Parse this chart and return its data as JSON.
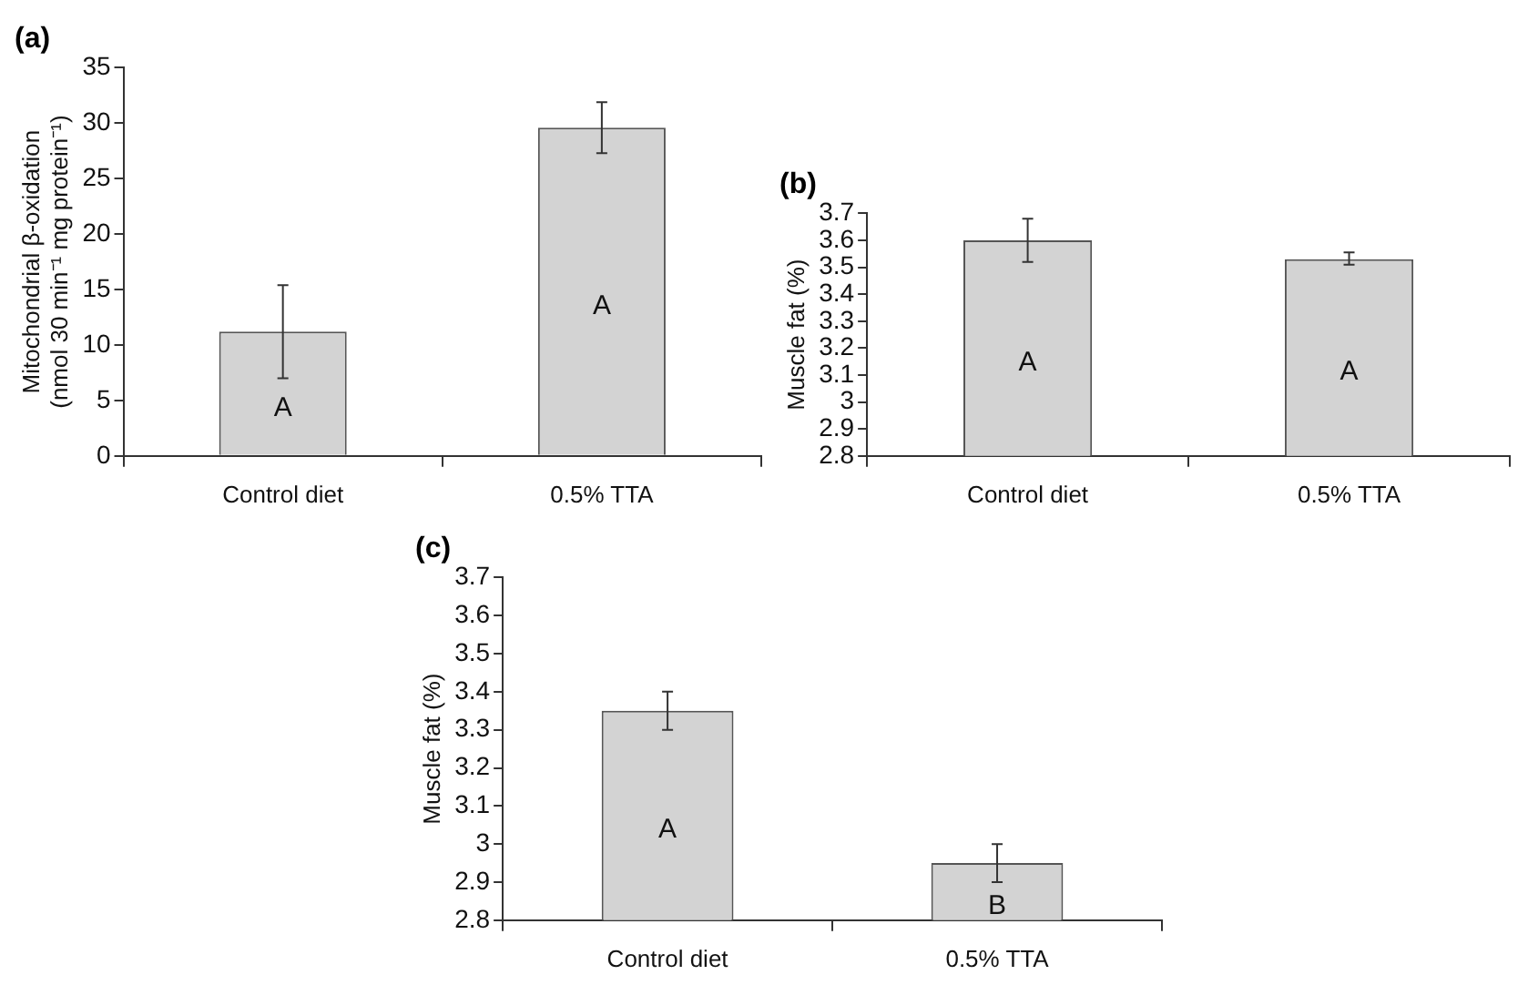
{
  "chart_data": [
    {
      "type": "bar",
      "title": "(a)",
      "ylabel": "Mitochondrial β-oxidation (nmol 30 min⁻¹ mg protein⁻¹)",
      "categories": [
        "Control diet",
        "0.5% TTA"
      ],
      "values": [
        11.2,
        29.6
      ],
      "errors": [
        [
          7,
          15.4
        ],
        [
          27.3,
          31.9
        ]
      ],
      "color": "#d3d3d3",
      "ylim": [
        0,
        35
      ],
      "yticks": [
        0,
        5,
        10,
        15,
        20,
        25,
        30,
        35
      ],
      "grid": false,
      "legend": false,
      "annotations": [
        "A",
        "A"
      ]
    },
    {
      "type": "bar",
      "title": "(b)",
      "ylabel": "Muscle fat (%)",
      "categories": [
        "Control diet",
        "0.5% TTA"
      ],
      "values": [
        3.6,
        3.53
      ],
      "errors": [
        [
          3.52,
          3.68
        ],
        [
          3.51,
          3.555
        ]
      ],
      "color": "#d3d3d3",
      "ylim": [
        2.8,
        3.7
      ],
      "yticks": [
        2.8,
        2.9,
        3,
        3.1,
        3.2,
        3.3,
        3.4,
        3.5,
        3.6,
        3.7
      ],
      "grid": false,
      "legend": false,
      "annotations": [
        "A",
        "A"
      ]
    },
    {
      "type": "bar",
      "title": "(c)",
      "ylabel": "Muscle fat (%)",
      "categories": [
        "Control diet",
        "0.5% TTA"
      ],
      "values": [
        3.35,
        2.95
      ],
      "errors": [
        [
          3.3,
          3.4
        ],
        [
          2.9,
          3.0
        ]
      ],
      "color": "#d3d3d3",
      "ylim": [
        2.8,
        3.7
      ],
      "yticks": [
        2.8,
        2.9,
        3,
        3.1,
        3.2,
        3.3,
        3.4,
        3.5,
        3.6,
        3.7
      ],
      "grid": false,
      "legend": false,
      "annotations": [
        "A",
        "B"
      ]
    }
  ]
}
